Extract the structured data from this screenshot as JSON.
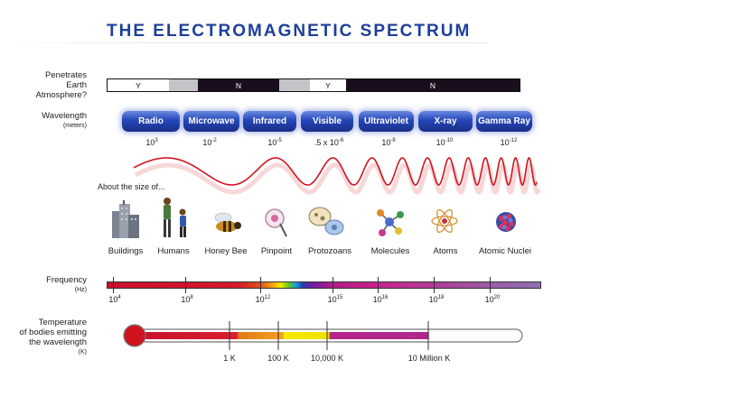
{
  "title": "THE ELECTROMAGNETIC SPECTRUM",
  "atmosphere": {
    "label": [
      "Penetrates",
      "Earth",
      "Atmosphere?"
    ],
    "segments": [
      {
        "text": "Y",
        "color": "#ffffff",
        "textColor": "#111111"
      },
      {
        "text": "",
        "color": "#c4c4c8",
        "textColor": "#111111"
      },
      {
        "text": "N",
        "color": "#1a0d1d",
        "textColor": "#ffffff"
      },
      {
        "text": "",
        "color": "#c4c4c8",
        "textColor": "#111111"
      },
      {
        "text": "Y",
        "color": "#ffffff",
        "textColor": "#111111"
      },
      {
        "text": "N",
        "color": "#1a0d1d",
        "textColor": "#ffffff"
      }
    ]
  },
  "wavelength": {
    "label": "Wavelength",
    "unit": "(meters)",
    "bands": [
      "Radio",
      "Microwave",
      "Infrared",
      "Visible",
      "Ultraviolet",
      "X-ray",
      "Gamma Ray"
    ],
    "values": [
      {
        "base": "10",
        "exp": "3"
      },
      {
        "base": "10",
        "exp": "-2"
      },
      {
        "base": "10",
        "exp": "-5"
      },
      {
        "base": ".5 x 10",
        "exp": "-6"
      },
      {
        "base": "10",
        "exp": "-8"
      },
      {
        "base": "10",
        "exp": "-10"
      },
      {
        "base": "10",
        "exp": "-12"
      }
    ]
  },
  "size_of_label": "About the size of...",
  "things": [
    {
      "label": "Buildings",
      "icon": "buildings-icon"
    },
    {
      "label": "Humans",
      "icon": "humans-icon"
    },
    {
      "label": "Honey Bee",
      "icon": "honey-bee-icon"
    },
    {
      "label": "Pinpoint",
      "icon": "pinpoint-icon"
    },
    {
      "label": "Protozoans",
      "icon": "protozoans-icon"
    },
    {
      "label": "Molecules",
      "icon": "molecules-icon"
    },
    {
      "label": "Atoms",
      "icon": "atom-icon"
    },
    {
      "label": "Atomic Nuclei",
      "icon": "atomic-nucleus-icon"
    }
  ],
  "frequency": {
    "label": "Frequency",
    "unit": "(Hz)",
    "ticks": [
      {
        "base": "10",
        "exp": "4"
      },
      {
        "base": "10",
        "exp": "8"
      },
      {
        "base": "10",
        "exp": "12"
      },
      {
        "base": "10",
        "exp": "15"
      },
      {
        "base": "10",
        "exp": "16"
      },
      {
        "base": "10",
        "exp": "18"
      },
      {
        "base": "10",
        "exp": "20"
      }
    ]
  },
  "temperature": {
    "label": [
      "Temperature",
      "of bodies emitting",
      "the wavelength"
    ],
    "unit": "(K)",
    "ticks": [
      "1 K",
      "100 K",
      "10,000 K",
      "10 Million K"
    ]
  },
  "colors": {
    "title": "#1d3f9a",
    "wave": "#d0141f",
    "band": "#2446b8"
  }
}
